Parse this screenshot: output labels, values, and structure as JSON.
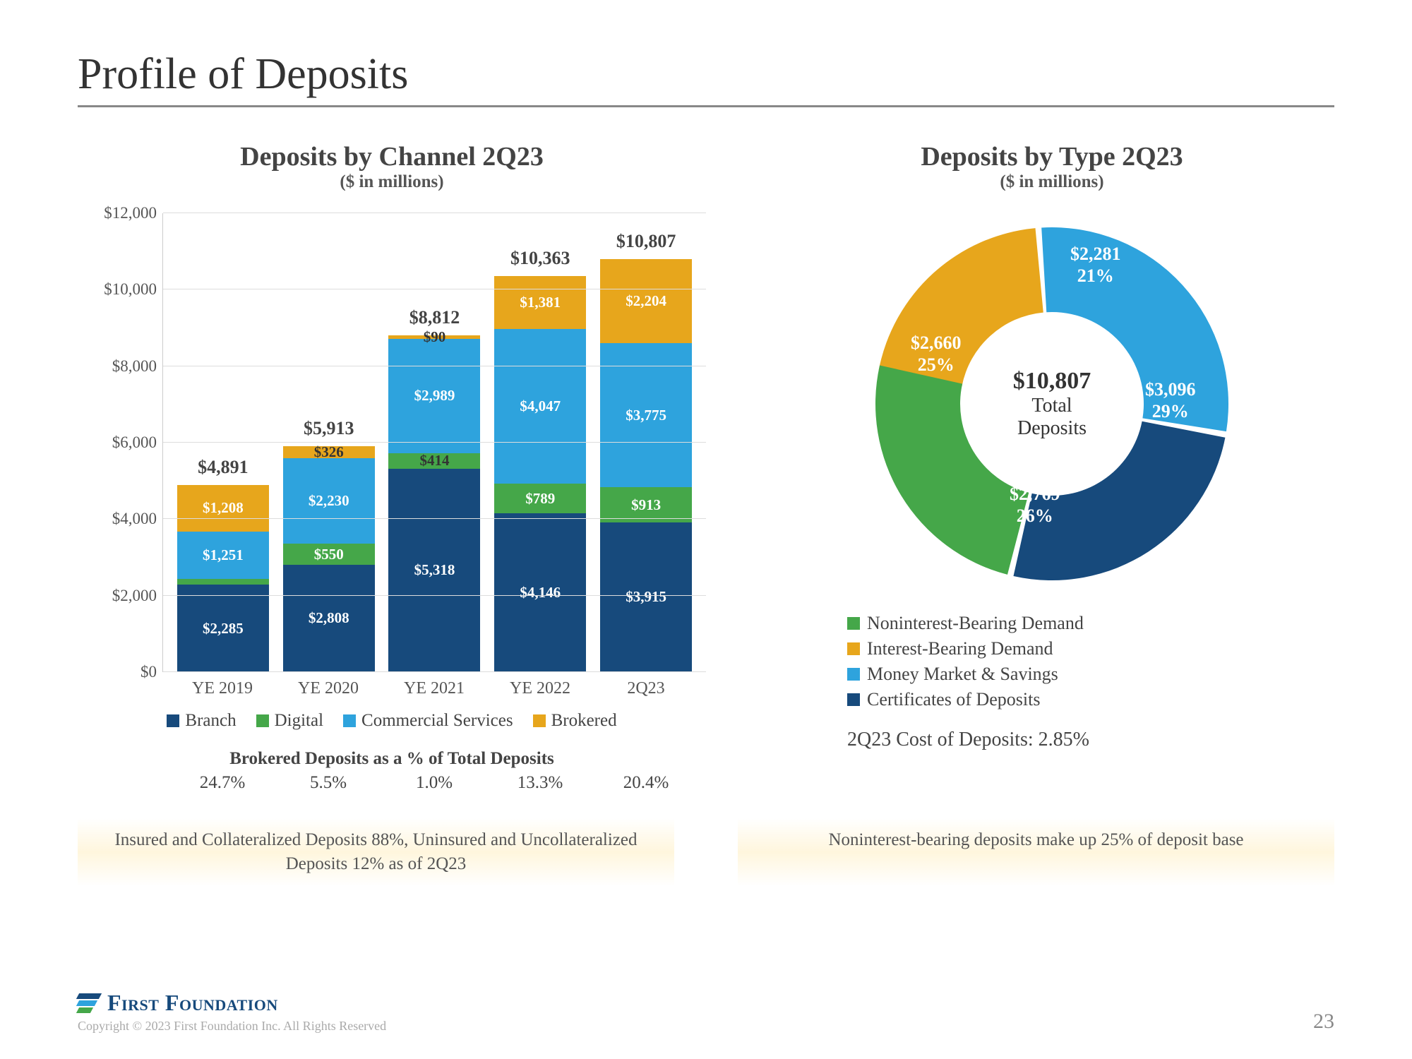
{
  "page_title": "Profile of Deposits",
  "page_number": "23",
  "brand_name": "First Foundation",
  "copyright": "Copyright © 2023 First Foundation Inc. All Rights Reserved",
  "colors": {
    "branch": "#174a7c",
    "digital": "#45a749",
    "commercial": "#2ea3dd",
    "brokered": "#e7a61c",
    "grid": "#dddddd",
    "bg": "#ffffff"
  },
  "bar_chart": {
    "title": "Deposits by Channel 2Q23",
    "subtitle": "($ in millions)",
    "ylim": [
      0,
      12000
    ],
    "ytick_step": 2000,
    "yticks": [
      "$0",
      "$2,000",
      "$4,000",
      "$6,000",
      "$8,000",
      "$10,000",
      "$12,000"
    ],
    "series_keys": [
      "branch",
      "digital",
      "commercial",
      "brokered"
    ],
    "series_labels": {
      "branch": "Branch",
      "digital": "Digital",
      "commercial": "Commercial Services",
      "brokered": "Brokered"
    },
    "periods": [
      {
        "label": "YE 2019",
        "total": 4891,
        "total_label": "$4,891",
        "branch": 2285,
        "digital": 147,
        "commercial": 1251,
        "brokered": 1208,
        "seg_labels": {
          "branch": "$2,285",
          "digital": "",
          "commercial": "$1,251",
          "brokered": "$1,208"
        }
      },
      {
        "label": "YE 2020",
        "total": 5913,
        "total_label": "$5,913",
        "branch": 2808,
        "digital": 550,
        "commercial": 2230,
        "brokered": 326,
        "seg_labels": {
          "branch": "$2,808",
          "digital": "$550",
          "commercial": "$2,230",
          "brokered": "$326"
        }
      },
      {
        "label": "YE 2021",
        "total": 8812,
        "total_label": "$8,812",
        "branch": 5318,
        "digital": 414,
        "commercial": 2989,
        "brokered": 90,
        "seg_labels": {
          "branch": "$5,318",
          "digital": "$414",
          "commercial": "$2,989",
          "brokered": "$90"
        }
      },
      {
        "label": "YE 2022",
        "total": 10363,
        "total_label": "$10,363",
        "branch": 4146,
        "digital": 789,
        "commercial": 4047,
        "brokered": 1381,
        "seg_labels": {
          "branch": "$4,146",
          "digital": "$789",
          "commercial": "$4,047",
          "brokered": "$1,381"
        }
      },
      {
        "label": "2Q23",
        "total": 10807,
        "total_label": "$10,807",
        "branch": 3915,
        "digital": 913,
        "commercial": 3775,
        "brokered": 2204,
        "seg_labels": {
          "branch": "$3,915",
          "digital": "$913",
          "commercial": "$3,775",
          "brokered": "$2,204"
        }
      }
    ],
    "brokered_title": "Brokered Deposits as a % of Total Deposits",
    "brokered_pct": [
      "24.7%",
      "5.5%",
      "1.0%",
      "13.3%",
      "20.4%"
    ]
  },
  "donut_chart": {
    "title": "Deposits by Type 2Q23",
    "subtitle": "($ in millions)",
    "center_value": "$10,807",
    "center_label_1": "Total",
    "center_label_2": "Deposits",
    "slices": [
      {
        "key": "noninterest",
        "label": "Noninterest-Bearing Demand",
        "amount": "$2,660",
        "pct": "25%",
        "value": 25,
        "color": "#45a749",
        "lbl_x": 70,
        "lbl_y": 168,
        "text_color": "#ffffff"
      },
      {
        "key": "interest",
        "label": "Interest-Bearing Demand",
        "amount": "$2,281",
        "pct": "21%",
        "value": 21,
        "color": "#e7a61c",
        "lbl_x": 296,
        "lbl_y": 42,
        "text_color": "#ffffff"
      },
      {
        "key": "mmkt",
        "label": "Money Market & Savings",
        "amount": "$3,096",
        "pct": "29%",
        "value": 29,
        "color": "#2ea3dd",
        "lbl_x": 402,
        "lbl_y": 234,
        "text_color": "#ffffff"
      },
      {
        "key": "cds",
        "label": "Certificates of Deposits",
        "amount": "$2,769",
        "pct": "26%",
        "value": 26,
        "color": "#174a7c",
        "lbl_x": 210,
        "lbl_y": 382,
        "text_color": "#ffffff"
      }
    ],
    "slice_order": [
      "interest",
      "mmkt",
      "cds",
      "noninterest"
    ],
    "start_angle": -80,
    "cost_line": "2Q23 Cost of Deposits: 2.85%"
  },
  "callouts": {
    "left": "Insured and Collateralized Deposits 88%, Uninsured and Uncollateralized Deposits 12% as of 2Q23",
    "right": "Noninterest-bearing deposits make up 25% of deposit base"
  }
}
